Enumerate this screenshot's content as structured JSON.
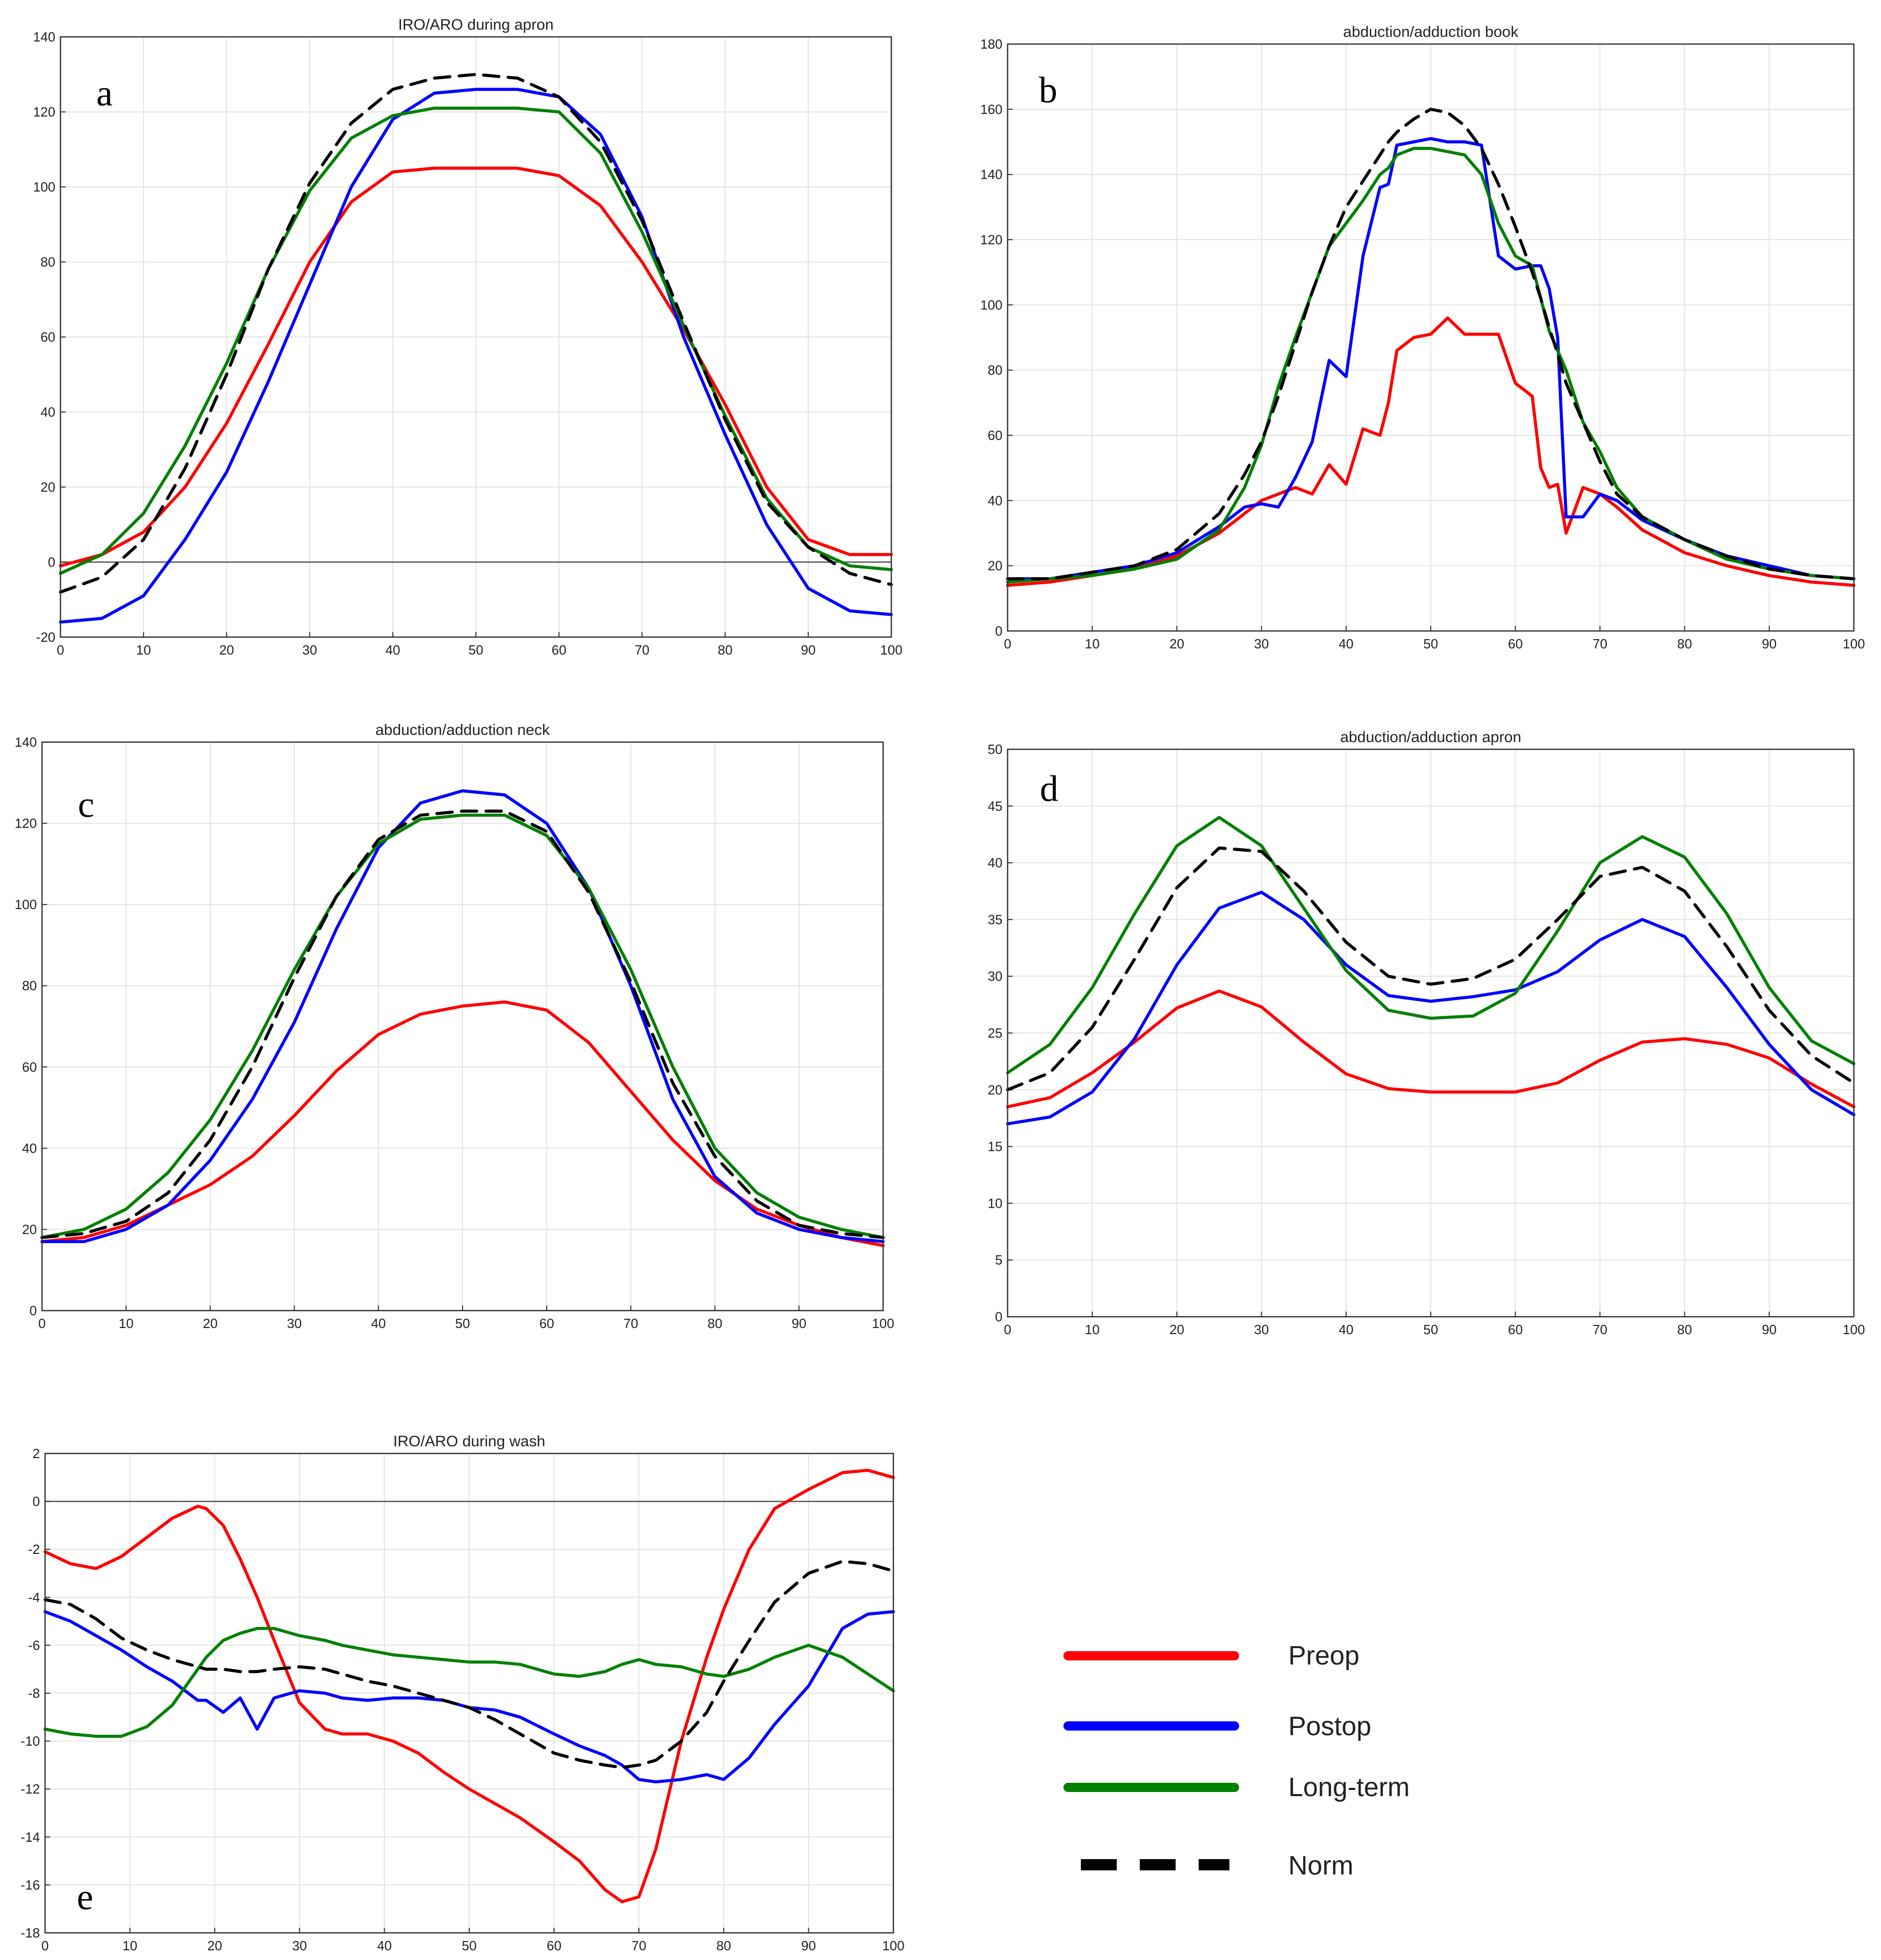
{
  "chart_data": [
    {
      "type": "line",
      "panel": "a",
      "title": "IRO/ARO during apron",
      "xlabel": "",
      "ylabel": "",
      "xlim": [
        0,
        100
      ],
      "ylim": [
        -20,
        140
      ],
      "xticks": [
        0,
        10,
        20,
        30,
        40,
        50,
        60,
        70,
        80,
        90,
        100
      ],
      "yticks": [
        -20,
        0,
        20,
        40,
        60,
        80,
        100,
        120,
        140
      ],
      "zero_line": true,
      "grid": true,
      "x": [
        0,
        5,
        10,
        15,
        20,
        25,
        30,
        35,
        40,
        45,
        50,
        55,
        60,
        65,
        70,
        75,
        80,
        85,
        90,
        95,
        100
      ],
      "series": [
        {
          "name": "Preop",
          "values": [
            -1,
            2,
            8,
            20,
            37,
            58,
            80,
            96,
            104,
            105,
            105,
            105,
            103,
            95,
            80,
            62,
            42,
            20,
            6,
            2,
            2
          ]
        },
        {
          "name": "Postop",
          "values": [
            -16,
            -15,
            -9,
            6,
            24,
            48,
            74,
            100,
            118,
            125,
            126,
            126,
            124,
            114,
            92,
            60,
            34,
            10,
            -7,
            -13,
            -14
          ]
        },
        {
          "name": "Long-term",
          "values": [
            -3,
            2,
            13,
            31,
            53,
            78,
            99,
            113,
            119,
            121,
            121,
            121,
            120,
            109,
            88,
            63,
            39,
            17,
            4,
            -1,
            -2
          ]
        },
        {
          "name": "Norm",
          "values": [
            -8,
            -4,
            6,
            25,
            50,
            78,
            101,
            117,
            126,
            129,
            130,
            129,
            124,
            112,
            91,
            64,
            38,
            16,
            4,
            -3,
            -6
          ]
        }
      ]
    },
    {
      "type": "line",
      "panel": "b",
      "title": "abduction/adduction book",
      "xlabel": "",
      "ylabel": "",
      "xlim": [
        0,
        100
      ],
      "ylim": [
        0,
        180
      ],
      "xticks": [
        0,
        10,
        20,
        30,
        40,
        50,
        60,
        70,
        80,
        90,
        100
      ],
      "yticks": [
        0,
        20,
        40,
        60,
        80,
        100,
        120,
        140,
        160,
        180
      ],
      "zero_line": false,
      "grid": true,
      "x": [
        0,
        5,
        10,
        15,
        20,
        25,
        28,
        30,
        32,
        34,
        36,
        38,
        40,
        42,
        44,
        45,
        46,
        48,
        50,
        52,
        54,
        56,
        58,
        60,
        62,
        63,
        64,
        65,
        66,
        68,
        70,
        72,
        75,
        80,
        85,
        90,
        95,
        100
      ],
      "series": [
        {
          "name": "Preop",
          "values": [
            14,
            15,
            17,
            19,
            23,
            30,
            36,
            40,
            42,
            44,
            42,
            51,
            45,
            62,
            60,
            70,
            86,
            90,
            91,
            96,
            91,
            91,
            91,
            76,
            72,
            50,
            44,
            45,
            30,
            44,
            42,
            38,
            31,
            24,
            20,
            17,
            15,
            14
          ]
        },
        {
          "name": "Postop",
          "values": [
            16,
            16,
            18,
            20,
            24,
            32,
            38,
            39,
            38,
            47,
            58,
            83,
            78,
            115,
            136,
            137,
            149,
            150,
            151,
            150,
            150,
            149,
            115,
            111,
            112,
            112,
            105,
            90,
            35,
            35,
            42,
            40,
            34,
            28,
            23,
            20,
            17,
            16
          ]
        },
        {
          "name": "Long-term",
          "values": [
            15,
            16,
            17,
            19,
            22,
            31,
            44,
            57,
            75,
            90,
            104,
            118,
            125,
            132,
            140,
            142,
            146,
            148,
            148,
            147,
            146,
            140,
            125,
            115,
            112,
            102,
            92,
            86,
            80,
            64,
            55,
            44,
            35,
            28,
            22,
            19,
            17,
            16
          ]
        },
        {
          "name": "Norm",
          "values": [
            16,
            16,
            18,
            20,
            25,
            36,
            48,
            58,
            72,
            88,
            104,
            118,
            130,
            138,
            146,
            150,
            153,
            157,
            160,
            159,
            155,
            148,
            137,
            124,
            110,
            102,
            93,
            85,
            76,
            64,
            52,
            42,
            35,
            28,
            23,
            19,
            17,
            16
          ]
        }
      ]
    },
    {
      "type": "line",
      "panel": "c",
      "title": "abduction/adduction neck",
      "xlabel": "",
      "ylabel": "",
      "xlim": [
        0,
        100
      ],
      "ylim": [
        0,
        140
      ],
      "xticks": [
        0,
        10,
        20,
        30,
        40,
        50,
        60,
        70,
        80,
        90,
        100
      ],
      "yticks": [
        0,
        20,
        40,
        60,
        80,
        100,
        120,
        140
      ],
      "zero_line": false,
      "grid": true,
      "x": [
        0,
        5,
        10,
        15,
        20,
        25,
        30,
        35,
        40,
        45,
        50,
        55,
        60,
        65,
        70,
        75,
        80,
        85,
        90,
        95,
        100
      ],
      "series": [
        {
          "name": "Preop",
          "values": [
            17,
            18,
            21,
            26,
            31,
            38,
            48,
            59,
            68,
            73,
            75,
            76,
            74,
            66,
            54,
            42,
            32,
            25,
            21,
            18,
            16
          ]
        },
        {
          "name": "Postop",
          "values": [
            17,
            17,
            20,
            26,
            37,
            52,
            71,
            94,
            114,
            125,
            128,
            127,
            120,
            104,
            80,
            52,
            33,
            24,
            20,
            18,
            17
          ]
        },
        {
          "name": "Long-term",
          "values": [
            18,
            20,
            25,
            34,
            47,
            64,
            84,
            102,
            115,
            121,
            122,
            122,
            117,
            104,
            84,
            60,
            40,
            29,
            23,
            20,
            18
          ]
        },
        {
          "name": "Norm",
          "values": [
            18,
            19,
            22,
            29,
            42,
            60,
            82,
            102,
            116,
            122,
            123,
            123,
            118,
            103,
            81,
            56,
            38,
            27,
            21,
            19,
            18
          ]
        }
      ]
    },
    {
      "type": "line",
      "panel": "d",
      "title": "abduction/adduction apron",
      "xlabel": "",
      "ylabel": "",
      "xlim": [
        0,
        100
      ],
      "ylim": [
        0,
        50
      ],
      "xticks": [
        0,
        10,
        20,
        30,
        40,
        50,
        60,
        70,
        80,
        90,
        100
      ],
      "yticks": [
        0,
        5,
        10,
        15,
        20,
        25,
        30,
        35,
        40,
        45,
        50
      ],
      "zero_line": false,
      "grid": true,
      "x": [
        0,
        5,
        10,
        15,
        20,
        25,
        30,
        35,
        40,
        45,
        50,
        55,
        60,
        65,
        70,
        75,
        80,
        85,
        90,
        95,
        100
      ],
      "series": [
        {
          "name": "Preop",
          "values": [
            18.5,
            19.3,
            21.5,
            24.2,
            27.2,
            28.7,
            27.3,
            24.2,
            21.4,
            20.1,
            19.8,
            19.8,
            19.8,
            20.6,
            22.6,
            24.2,
            24.5,
            24,
            22.8,
            20.5,
            18.5
          ]
        },
        {
          "name": "Postop",
          "values": [
            17,
            17.6,
            19.8,
            24.5,
            31,
            36,
            37.4,
            35,
            31,
            28.3,
            27.8,
            28.2,
            28.8,
            30.4,
            33.2,
            35,
            33.5,
            29,
            24,
            20,
            17.8
          ]
        },
        {
          "name": "Long-term",
          "values": [
            21.5,
            24,
            29,
            35.5,
            41.5,
            44,
            41.5,
            36,
            30.5,
            27,
            26.3,
            26.5,
            28.5,
            34,
            40,
            42.3,
            40.5,
            35.5,
            29,
            24.3,
            22.3
          ]
        },
        {
          "name": "Norm",
          "values": [
            20,
            21.5,
            25.5,
            31.5,
            37.8,
            41.3,
            41,
            37.5,
            33,
            30,
            29.3,
            29.8,
            31.5,
            35,
            38.8,
            39.6,
            37.5,
            32.6,
            27,
            23,
            20.6
          ]
        }
      ]
    },
    {
      "type": "line",
      "panel": "e",
      "title": "IRO/ARO during wash",
      "xlabel": "",
      "ylabel": "",
      "xlim": [
        0,
        100
      ],
      "ylim": [
        -18,
        2
      ],
      "xticks": [
        0,
        10,
        20,
        30,
        40,
        50,
        60,
        70,
        80,
        90,
        100
      ],
      "yticks": [
        -18,
        -16,
        -14,
        -12,
        -10,
        -8,
        -6,
        -4,
        -2,
        0,
        2
      ],
      "zero_line": true,
      "grid": true,
      "x": [
        0,
        3,
        6,
        9,
        12,
        15,
        18,
        19,
        21,
        23,
        25,
        27,
        30,
        33,
        35,
        38,
        41,
        44,
        47,
        50,
        53,
        56,
        60,
        63,
        66,
        68,
        70,
        72,
        75,
        78,
        80,
        83,
        86,
        90,
        94,
        97,
        100
      ],
      "series": [
        {
          "name": "Preop",
          "values": [
            -2.1,
            -2.6,
            -2.8,
            -2.3,
            -1.5,
            -0.7,
            -0.2,
            -0.3,
            -1,
            -2.4,
            -4,
            -5.8,
            -8.4,
            -9.5,
            -9.7,
            -9.7,
            -10,
            -10.5,
            -11.3,
            -12,
            -12.6,
            -13.2,
            -14.2,
            -15,
            -16.2,
            -16.7,
            -16.5,
            -14.5,
            -10,
            -6.5,
            -4.5,
            -2,
            -0.3,
            0.5,
            1.2,
            1.3,
            1
          ]
        },
        {
          "name": "Postop",
          "values": [
            -4.6,
            -5,
            -5.6,
            -6.2,
            -6.9,
            -7.5,
            -8.3,
            -8.3,
            -8.8,
            -8.2,
            -9.5,
            -8.2,
            -7.9,
            -8,
            -8.2,
            -8.3,
            -8.2,
            -8.2,
            -8.3,
            -8.6,
            -8.7,
            -9,
            -9.7,
            -10.2,
            -10.6,
            -11,
            -11.6,
            -11.7,
            -11.6,
            -11.4,
            -11.6,
            -10.7,
            -9.3,
            -7.7,
            -5.3,
            -4.7,
            -4.6
          ]
        },
        {
          "name": "Long-term",
          "values": [
            -9.5,
            -9.7,
            -9.8,
            -9.8,
            -9.4,
            -8.5,
            -7,
            -6.5,
            -5.8,
            -5.5,
            -5.3,
            -5.3,
            -5.6,
            -5.8,
            -6,
            -6.2,
            -6.4,
            -6.5,
            -6.6,
            -6.7,
            -6.7,
            -6.8,
            -7.2,
            -7.3,
            -7.1,
            -6.8,
            -6.6,
            -6.8,
            -6.9,
            -7.2,
            -7.3,
            -7,
            -6.5,
            -6,
            -6.5,
            -7.2,
            -7.9
          ]
        },
        {
          "name": "Norm",
          "values": [
            -4.1,
            -4.3,
            -4.9,
            -5.7,
            -6.2,
            -6.6,
            -6.9,
            -7,
            -7,
            -7.1,
            -7.1,
            -7,
            -6.9,
            -7,
            -7.2,
            -7.5,
            -7.7,
            -8,
            -8.3,
            -8.6,
            -9.1,
            -9.7,
            -10.5,
            -10.8,
            -11,
            -11.1,
            -11,
            -10.8,
            -10,
            -8.8,
            -7.5,
            -5.8,
            -4.2,
            -3,
            -2.5,
            -2.6,
            -2.9
          ]
        }
      ]
    }
  ],
  "legend": [
    {
      "label": "Preop",
      "color": "#ff0000",
      "style": "solid"
    },
    {
      "label": "Postop",
      "color": "#0000ff",
      "style": "solid"
    },
    {
      "label": "Long-term",
      "color": "#008000",
      "style": "solid"
    },
    {
      "label": "Norm",
      "color": "#000000",
      "style": "dashed"
    }
  ],
  "series_styles": {
    "Preop": {
      "color": "#ff0000",
      "dash": "solid"
    },
    "Postop": {
      "color": "#0000ff",
      "dash": "solid"
    },
    "Long-term": {
      "color": "#008000",
      "dash": "solid"
    },
    "Norm": {
      "color": "#000000",
      "dash": "dashed"
    }
  }
}
